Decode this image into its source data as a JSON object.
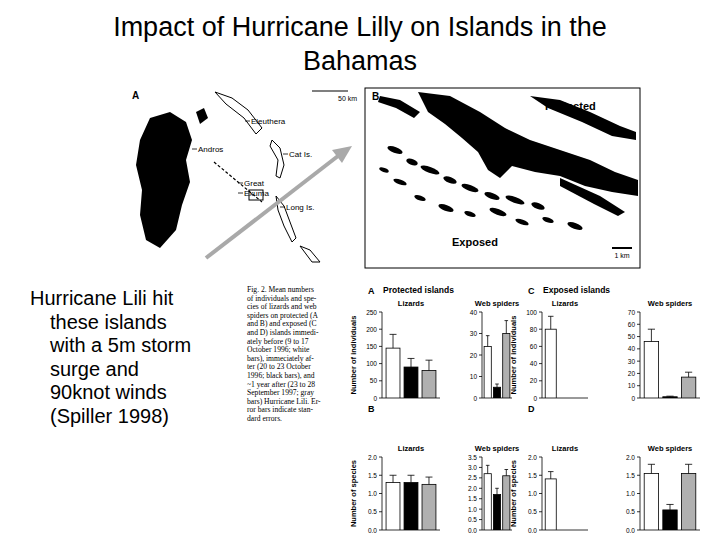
{
  "slide": {
    "title": [
      "Impact of Hurricane Lilly on Islands in the",
      "Bahamas"
    ],
    "body": [
      "Hurricane Lili hit",
      "these islands",
      "with a 5m storm",
      "surge and",
      "90knot winds",
      "(Spiller 1998)"
    ],
    "caption": [
      "Fig. 2. Mean numbers",
      "of individuals and spe-",
      "cies of lizards and web",
      "spiders on protected (A",
      "and B) and exposed (C",
      "and D) islands immedi-",
      "ately before (9 to 17",
      "October 1996; white",
      "bars), immeciately af-",
      "ter (20 to 23 October",
      "1996; black bars), and",
      "~1 year after (23 to 28",
      "September 1997; gray",
      "bars) Hurricane Lili. Er-",
      "ror bars indicate stan-",
      "dard errors."
    ]
  },
  "map_a": {
    "letter": "A",
    "scale": "50 km",
    "labels": [
      "Eleuthera",
      "Andros",
      "Cat Is.",
      "Great",
      "Exuma",
      "Long Is."
    ]
  },
  "map_b": {
    "letter": "B",
    "protected": "Protected",
    "exposed": "Exposed",
    "scale": "1 km"
  },
  "figure": {
    "panels": [
      {
        "letter": "A",
        "header": "Protected islands"
      },
      {
        "letter": "B"
      },
      {
        "letter": "C",
        "header": "Exposed islands"
      },
      {
        "letter": "D"
      }
    ]
  },
  "chart_data": [
    {
      "type": "bar",
      "title": "Lizards",
      "ylabel": "Number of individuals",
      "categories": [
        null,
        null,
        null
      ],
      "values": [
        145,
        90,
        80
      ],
      "errors": [
        40,
        25,
        30
      ],
      "colors": [
        "#ffffff",
        "#000000",
        "#b0b0b0"
      ],
      "ylim": [
        0,
        250
      ],
      "yticks": [
        0,
        50,
        100,
        150,
        200,
        250
      ],
      "grid": false
    },
    {
      "type": "bar",
      "title": "Web spiders",
      "categories": [
        null,
        null,
        null
      ],
      "values": [
        24,
        5,
        30
      ],
      "errors": [
        5,
        1.5,
        6
      ],
      "colors": [
        "#ffffff",
        "#000000",
        "#b0b0b0"
      ],
      "ylim": [
        0,
        40
      ],
      "yticks": [
        0,
        10,
        20,
        30,
        40
      ],
      "grid": false
    },
    {
      "type": "bar",
      "title": "Lizards",
      "ylabel": "Number of species",
      "categories": [
        null,
        null,
        null
      ],
      "values": [
        1.3,
        1.3,
        1.25
      ],
      "errors": [
        0.2,
        0.2,
        0.2
      ],
      "colors": [
        "#ffffff",
        "#000000",
        "#b0b0b0"
      ],
      "ylim": [
        0,
        2
      ],
      "yticks": [
        {
          "value": 0,
          "label": "0.0"
        },
        0.5,
        {
          "value": 1,
          "label": "1.0"
        },
        1.5,
        {
          "value": 2,
          "label": "2.0"
        }
      ],
      "grid": false
    },
    {
      "type": "bar",
      "title": "Web spiders",
      "categories": [
        null,
        null,
        null
      ],
      "values": [
        2.7,
        1.7,
        2.6
      ],
      "errors": [
        0.4,
        0.3,
        0.3
      ],
      "colors": [
        "#ffffff",
        "#000000",
        "#b0b0b0"
      ],
      "ylim": [
        0,
        3.5
      ],
      "yticks": [
        {
          "value": 0,
          "label": "0.0"
        },
        0.5,
        {
          "value": 1,
          "label": "1.0"
        },
        1.5,
        {
          "value": 2,
          "label": "2.0"
        },
        2.5,
        {
          "value": 3,
          "label": "3.0"
        },
        3.5
      ],
      "grid": false
    },
    {
      "type": "bar",
      "title": "Lizards",
      "ylabel": "Number of individuals",
      "categories": [
        null,
        null,
        null
      ],
      "values": [
        80,
        0,
        0
      ],
      "errors": [
        15,
        0,
        0
      ],
      "colors": [
        "#ffffff",
        "#000000",
        "#b0b0b0"
      ],
      "ylim": [
        0,
        100
      ],
      "yticks": [
        0,
        20,
        40,
        60,
        80,
        100
      ],
      "grid": false
    },
    {
      "type": "bar",
      "title": "Web spiders",
      "categories": [
        null,
        null,
        null
      ],
      "values": [
        46,
        1,
        17
      ],
      "errors": [
        10,
        0.5,
        4
      ],
      "colors": [
        "#ffffff",
        "#000000",
        "#b0b0b0"
      ],
      "ylim": [
        0,
        70
      ],
      "yticks": [
        0,
        10,
        20,
        30,
        40,
        50,
        60,
        70
      ],
      "grid": false
    },
    {
      "type": "bar",
      "title": "Lizards",
      "ylabel": "Number of species",
      "categories": [
        null,
        null,
        null
      ],
      "values": [
        1.4,
        0,
        0
      ],
      "errors": [
        0.2,
        0,
        0
      ],
      "colors": [
        "#ffffff",
        "#000000",
        "#b0b0b0"
      ],
      "ylim": [
        0,
        2
      ],
      "yticks": [
        {
          "value": 0,
          "label": "0.0"
        },
        0.5,
        {
          "value": 1,
          "label": "1.0"
        },
        1.5,
        {
          "value": 2,
          "label": "2.0"
        }
      ],
      "grid": false
    },
    {
      "type": "bar",
      "title": "Web spiders",
      "categories": [
        null,
        null,
        null
      ],
      "values": [
        1.55,
        0.55,
        1.55
      ],
      "errors": [
        0.25,
        0.15,
        0.25
      ],
      "colors": [
        "#ffffff",
        "#000000",
        "#b0b0b0"
      ],
      "ylim": [
        0,
        2
      ],
      "yticks": [
        {
          "value": 0,
          "label": "0.0"
        },
        0.5,
        {
          "value": 1,
          "label": "1.0"
        },
        1.5,
        {
          "value": 2,
          "label": "2.0"
        }
      ],
      "grid": false
    }
  ]
}
